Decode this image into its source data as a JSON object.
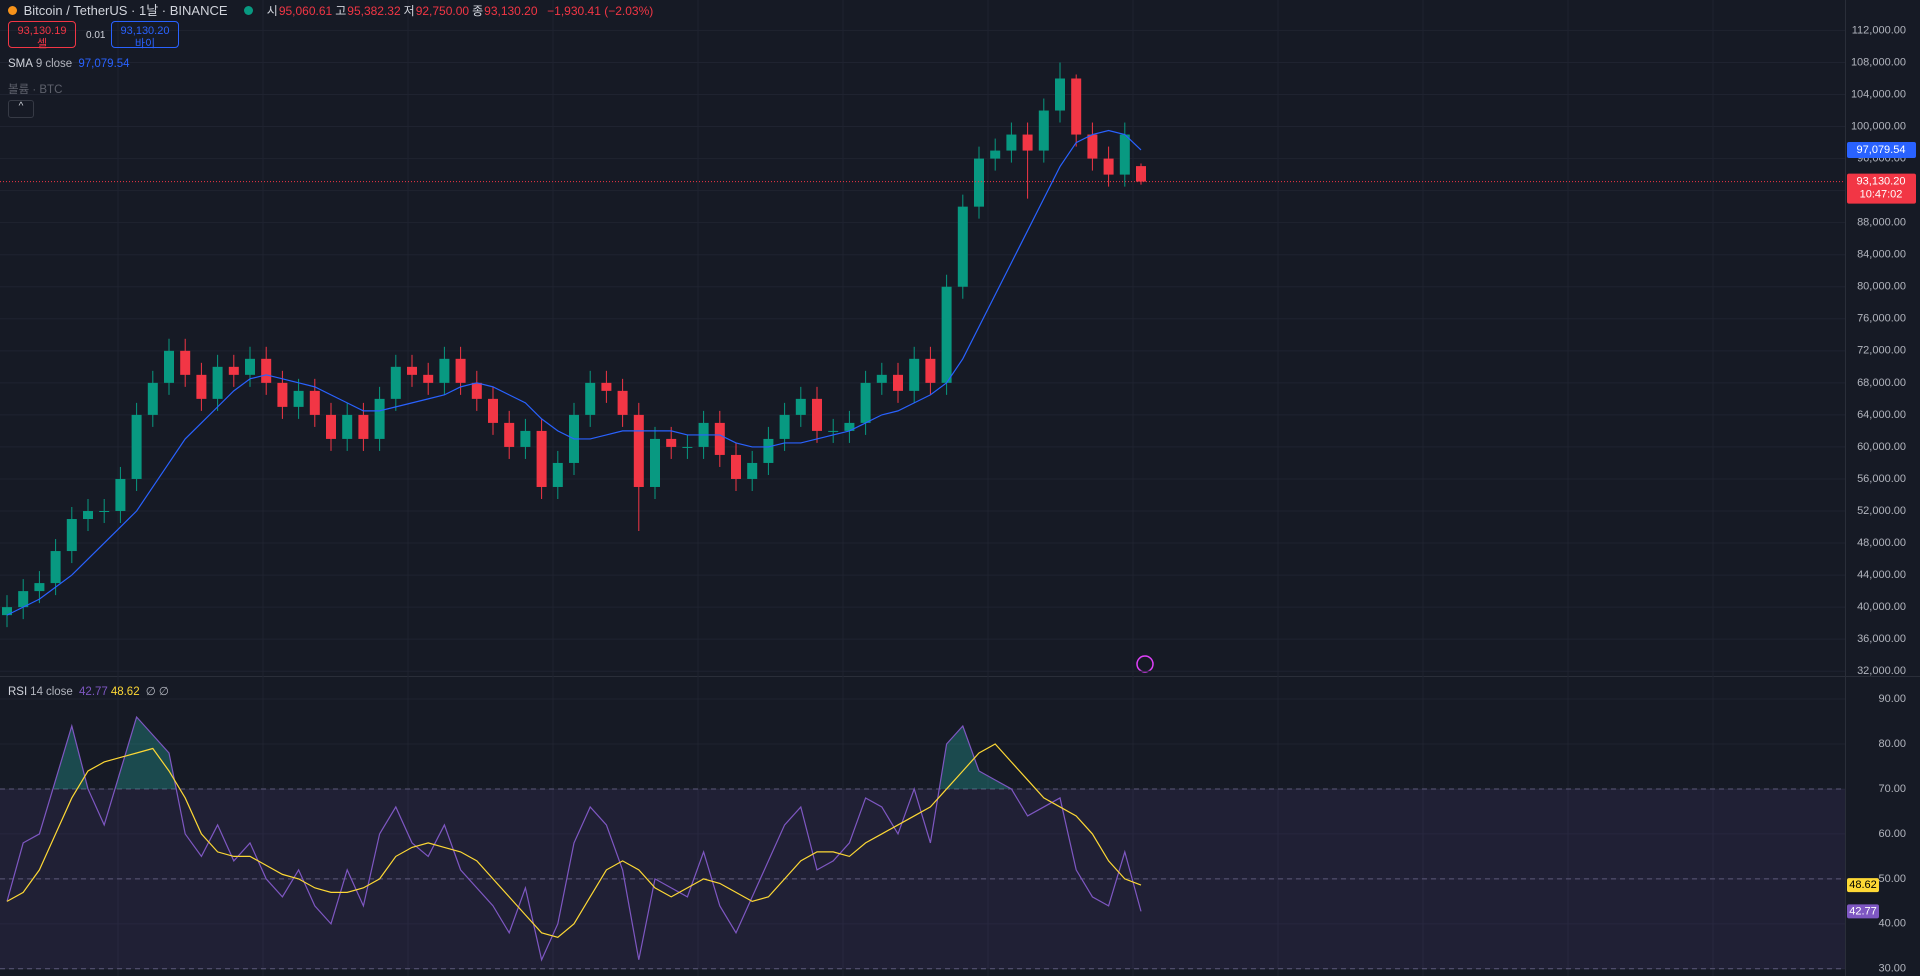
{
  "header": {
    "symbol": "Bitcoin / TetherUS · 1날 · BINANCE",
    "ohlc": [
      {
        "label": "시",
        "value": "95,060.61"
      },
      {
        "label": "고",
        "value": "95,382.32"
      },
      {
        "label": "저",
        "value": "92,750.00"
      },
      {
        "label": "종",
        "value": "93,130.20"
      }
    ],
    "change": "−1,930.41 (−2.03%)"
  },
  "trade": {
    "sell_price": "93,130.19",
    "sell": "셀",
    "spread": "0.01",
    "buy_price": "93,130.20",
    "buy": "바이"
  },
  "volume_legend": "볼륨 · BTC",
  "chart_data": [
    {
      "type": "candlestick",
      "up_color": "#089981",
      "down_color": "#f23645",
      "grid": true,
      "open": [
        39000,
        40000,
        42000,
        43000,
        47000,
        51000,
        52000,
        52000,
        56000,
        64000,
        68000,
        72000,
        69000,
        66000,
        70000,
        69000,
        71000,
        68000,
        65000,
        67000,
        64000,
        61000,
        64000,
        61000,
        66000,
        70000,
        69000,
        68000,
        71000,
        68000,
        66000,
        63000,
        60000,
        62000,
        55000,
        58000,
        64000,
        68000,
        67000,
        64000,
        55000,
        61000,
        60000,
        60000,
        63000,
        59000,
        56000,
        58000,
        61000,
        64000,
        66000,
        62000,
        62000,
        63000,
        68000,
        69000,
        67000,
        71000,
        68000,
        80000,
        90000,
        96000,
        97000,
        99000,
        97000,
        102000,
        106000,
        99000,
        96000,
        94000,
        95060.61
      ],
      "high": [
        41500,
        43500,
        44500,
        48500,
        52500,
        53500,
        53500,
        57500,
        65500,
        69500,
        73500,
        73500,
        70500,
        71500,
        71500,
        72500,
        72500,
        69500,
        68500,
        68500,
        65500,
        65500,
        65500,
        67500,
        71500,
        71500,
        70500,
        72500,
        72500,
        69500,
        67500,
        64500,
        63500,
        63500,
        59500,
        65500,
        69500,
        69500,
        68500,
        65500,
        62500,
        62500,
        61500,
        64500,
        64500,
        60500,
        59500,
        62500,
        65500,
        67500,
        67500,
        63500,
        64500,
        69500,
        70500,
        70500,
        72500,
        72500,
        81500,
        91500,
        97500,
        98500,
        100500,
        100500,
        103500,
        108000,
        106500,
        100500,
        97500,
        100500,
        95382.32
      ],
      "low": [
        37500,
        38500,
        40500,
        41500,
        45500,
        49500,
        50500,
        50500,
        54500,
        62500,
        66500,
        67500,
        64500,
        64500,
        67500,
        67500,
        66500,
        63500,
        63500,
        62500,
        59500,
        59500,
        59500,
        59500,
        64500,
        67500,
        66500,
        66500,
        66500,
        64500,
        61500,
        58500,
        58500,
        53500,
        53500,
        56500,
        62500,
        65500,
        62500,
        49500,
        53500,
        58500,
        58500,
        58500,
        57500,
        54500,
        54500,
        56500,
        59500,
        62500,
        60500,
        60500,
        60500,
        61500,
        66500,
        65500,
        65500,
        66500,
        66500,
        78500,
        88500,
        94500,
        95500,
        91000,
        95500,
        100500,
        97500,
        94500,
        92500,
        92500,
        92750
      ],
      "close": [
        40000,
        42000,
        43000,
        47000,
        51000,
        52000,
        52000,
        56000,
        64000,
        68000,
        72000,
        69000,
        66000,
        70000,
        69000,
        71000,
        68000,
        65000,
        67000,
        64000,
        61000,
        64000,
        61000,
        66000,
        70000,
        69000,
        68000,
        71000,
        68000,
        66000,
        63000,
        60000,
        62000,
        55000,
        58000,
        64000,
        68000,
        67000,
        64000,
        55000,
        61000,
        60000,
        60000,
        63000,
        59000,
        56000,
        58000,
        61000,
        64000,
        66000,
        62000,
        62000,
        63000,
        68000,
        69000,
        67000,
        71000,
        68000,
        80000,
        90000,
        96000,
        97000,
        99000,
        97000,
        102000,
        106000,
        99000,
        96000,
        94000,
        99000,
        93130.2
      ],
      "last_label": "93,130.20",
      "countdown": "10:47:02",
      "series": [
        {
          "name": "SMA",
          "length": 9,
          "source": "close",
          "color": "#2962ff",
          "last_label": "97,079.54",
          "values": [
            39000,
            40000,
            41000,
            42500,
            44000,
            46000,
            48000,
            50000,
            52000,
            55000,
            58000,
            61000,
            63000,
            65000,
            67000,
            68500,
            69000,
            68500,
            68000,
            67500,
            66500,
            65500,
            64500,
            64500,
            65000,
            65500,
            66000,
            66500,
            67500,
            68000,
            67500,
            66500,
            65500,
            63500,
            62000,
            61000,
            61000,
            61500,
            62000,
            62000,
            62000,
            62000,
            61500,
            61500,
            61500,
            60500,
            60000,
            60000,
            60500,
            60500,
            61000,
            61500,
            62000,
            63000,
            64000,
            64500,
            65500,
            66500,
            68000,
            71000,
            75000,
            79000,
            83000,
            87000,
            91000,
            95000,
            98000,
            99000,
            99500,
            99000,
            97079.54
          ]
        }
      ],
      "ylim": [
        31400,
        115800
      ],
      "yticks": [
        {
          "value": 32000,
          "label": "32,000.00"
        },
        {
          "value": 36000,
          "label": "36,000.00"
        },
        {
          "value": 40000,
          "label": "40,000.00"
        },
        {
          "value": 44000,
          "label": "44,000.00"
        },
        {
          "value": 48000,
          "label": "48,000.00"
        },
        {
          "value": 52000,
          "label": "52,000.00"
        },
        {
          "value": 56000,
          "label": "56,000.00"
        },
        {
          "value": 60000,
          "label": "60,000.00"
        },
        {
          "value": 64000,
          "label": "64,000.00"
        },
        {
          "value": 68000,
          "label": "68,000.00"
        },
        {
          "value": 72000,
          "label": "72,000.00"
        },
        {
          "value": 76000,
          "label": "76,000.00"
        },
        {
          "value": 80000,
          "label": "80,000.00"
        },
        {
          "value": 84000,
          "label": "84,000.00"
        },
        {
          "value": 88000,
          "label": "88,000.00"
        },
        {
          "value": 92000,
          "label": "92,000.00"
        },
        {
          "value": 96000,
          "label": "96,000.00"
        },
        {
          "value": 100000,
          "label": "100,000.00"
        },
        {
          "value": 104000,
          "label": "104,000.00"
        },
        {
          "value": 108000,
          "label": "108,000.00"
        },
        {
          "value": 112000,
          "label": "112,000.00"
        }
      ]
    },
    {
      "type": "line",
      "grid": true,
      "name": "RSI",
      "length": 14,
      "source": "close",
      "extra": [
        "∅",
        "∅"
      ],
      "overbought_color": "#26a69a",
      "series": [
        {
          "name": "RSI",
          "color": "#7e57c2",
          "values": [
            45,
            58,
            60,
            72,
            84,
            70,
            62,
            74,
            86,
            82,
            78,
            60,
            55,
            62,
            54,
            58,
            50,
            46,
            52,
            44,
            40,
            52,
            44,
            60,
            66,
            58,
            55,
            62,
            52,
            48,
            44,
            38,
            48,
            32,
            40,
            58,
            66,
            62,
            52,
            32,
            50,
            48,
            46,
            56,
            44,
            38,
            46,
            54,
            62,
            66,
            52,
            54,
            58,
            68,
            66,
            60,
            70,
            58,
            80,
            84,
            74,
            72,
            70,
            64,
            66,
            68,
            52,
            46,
            44,
            56,
            42.77
          ]
        },
        {
          "color": "#fdd835",
          "values": [
            45,
            47,
            52,
            60,
            68,
            74,
            76,
            77,
            78,
            79,
            74,
            68,
            60,
            56,
            55,
            55,
            53,
            51,
            50,
            48,
            47,
            47,
            48,
            50,
            55,
            57,
            58,
            57,
            56,
            54,
            50,
            46,
            42,
            38,
            37,
            40,
            46,
            52,
            54,
            52,
            48,
            46,
            48,
            50,
            49,
            47,
            45,
            46,
            50,
            54,
            56,
            56,
            55,
            58,
            60,
            62,
            64,
            66,
            70,
            74,
            78,
            80,
            76,
            72,
            68,
            66,
            64,
            60,
            54,
            50,
            48.62
          ]
        }
      ],
      "hlines": [
        70,
        50,
        30
      ],
      "ylim": [
        28.4,
        94.9
      ],
      "yticks": [
        {
          "value": 30,
          "label": "30.00"
        },
        {
          "value": 40,
          "label": "40.00"
        },
        {
          "value": 50,
          "label": "50.00"
        },
        {
          "value": 60,
          "label": "60.00"
        },
        {
          "value": 70,
          "label": "70.00"
        },
        {
          "value": 80,
          "label": "80.00"
        },
        {
          "value": 90,
          "label": "90.00"
        }
      ]
    }
  ]
}
